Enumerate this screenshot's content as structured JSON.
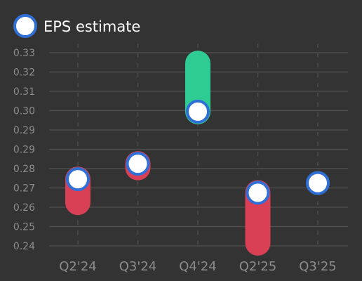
{
  "chart_data": {
    "type": "scatter",
    "title": "",
    "xlabel": "",
    "ylabel": "",
    "categories": [
      "Q2'24",
      "Q3'24",
      "Q4'24",
      "Q2'25",
      "Q3'25"
    ],
    "y_tick_labels": [
      "0.33",
      "0.32",
      "0.31",
      "0.30",
      "0.29",
      "0.29",
      "0.28",
      "0.27",
      "0.26",
      "0.25",
      "0.24"
    ],
    "ylim": [
      0.2375,
      0.3375
    ],
    "grid": true,
    "legend": {
      "placement": "top-left",
      "label": "EPS estimate"
    },
    "series": [
      {
        "name": "EPS estimate",
        "values": [
          0.272,
          0.28,
          0.307,
          0.265,
          0.27
        ]
      },
      {
        "values": [
          0.26,
          0.278,
          0.332,
          0.239,
          0.27
        ]
      }
    ],
    "colors": {
      "background": "#333333",
      "grid": "#4d4d4d",
      "beat": "#2ecc93",
      "miss": "#d94055",
      "marker_fill": "#ffffff",
      "marker_stroke": "#2f6fd6",
      "tick_text": "#8c8c8c",
      "legend_text": "#ffffff"
    }
  }
}
